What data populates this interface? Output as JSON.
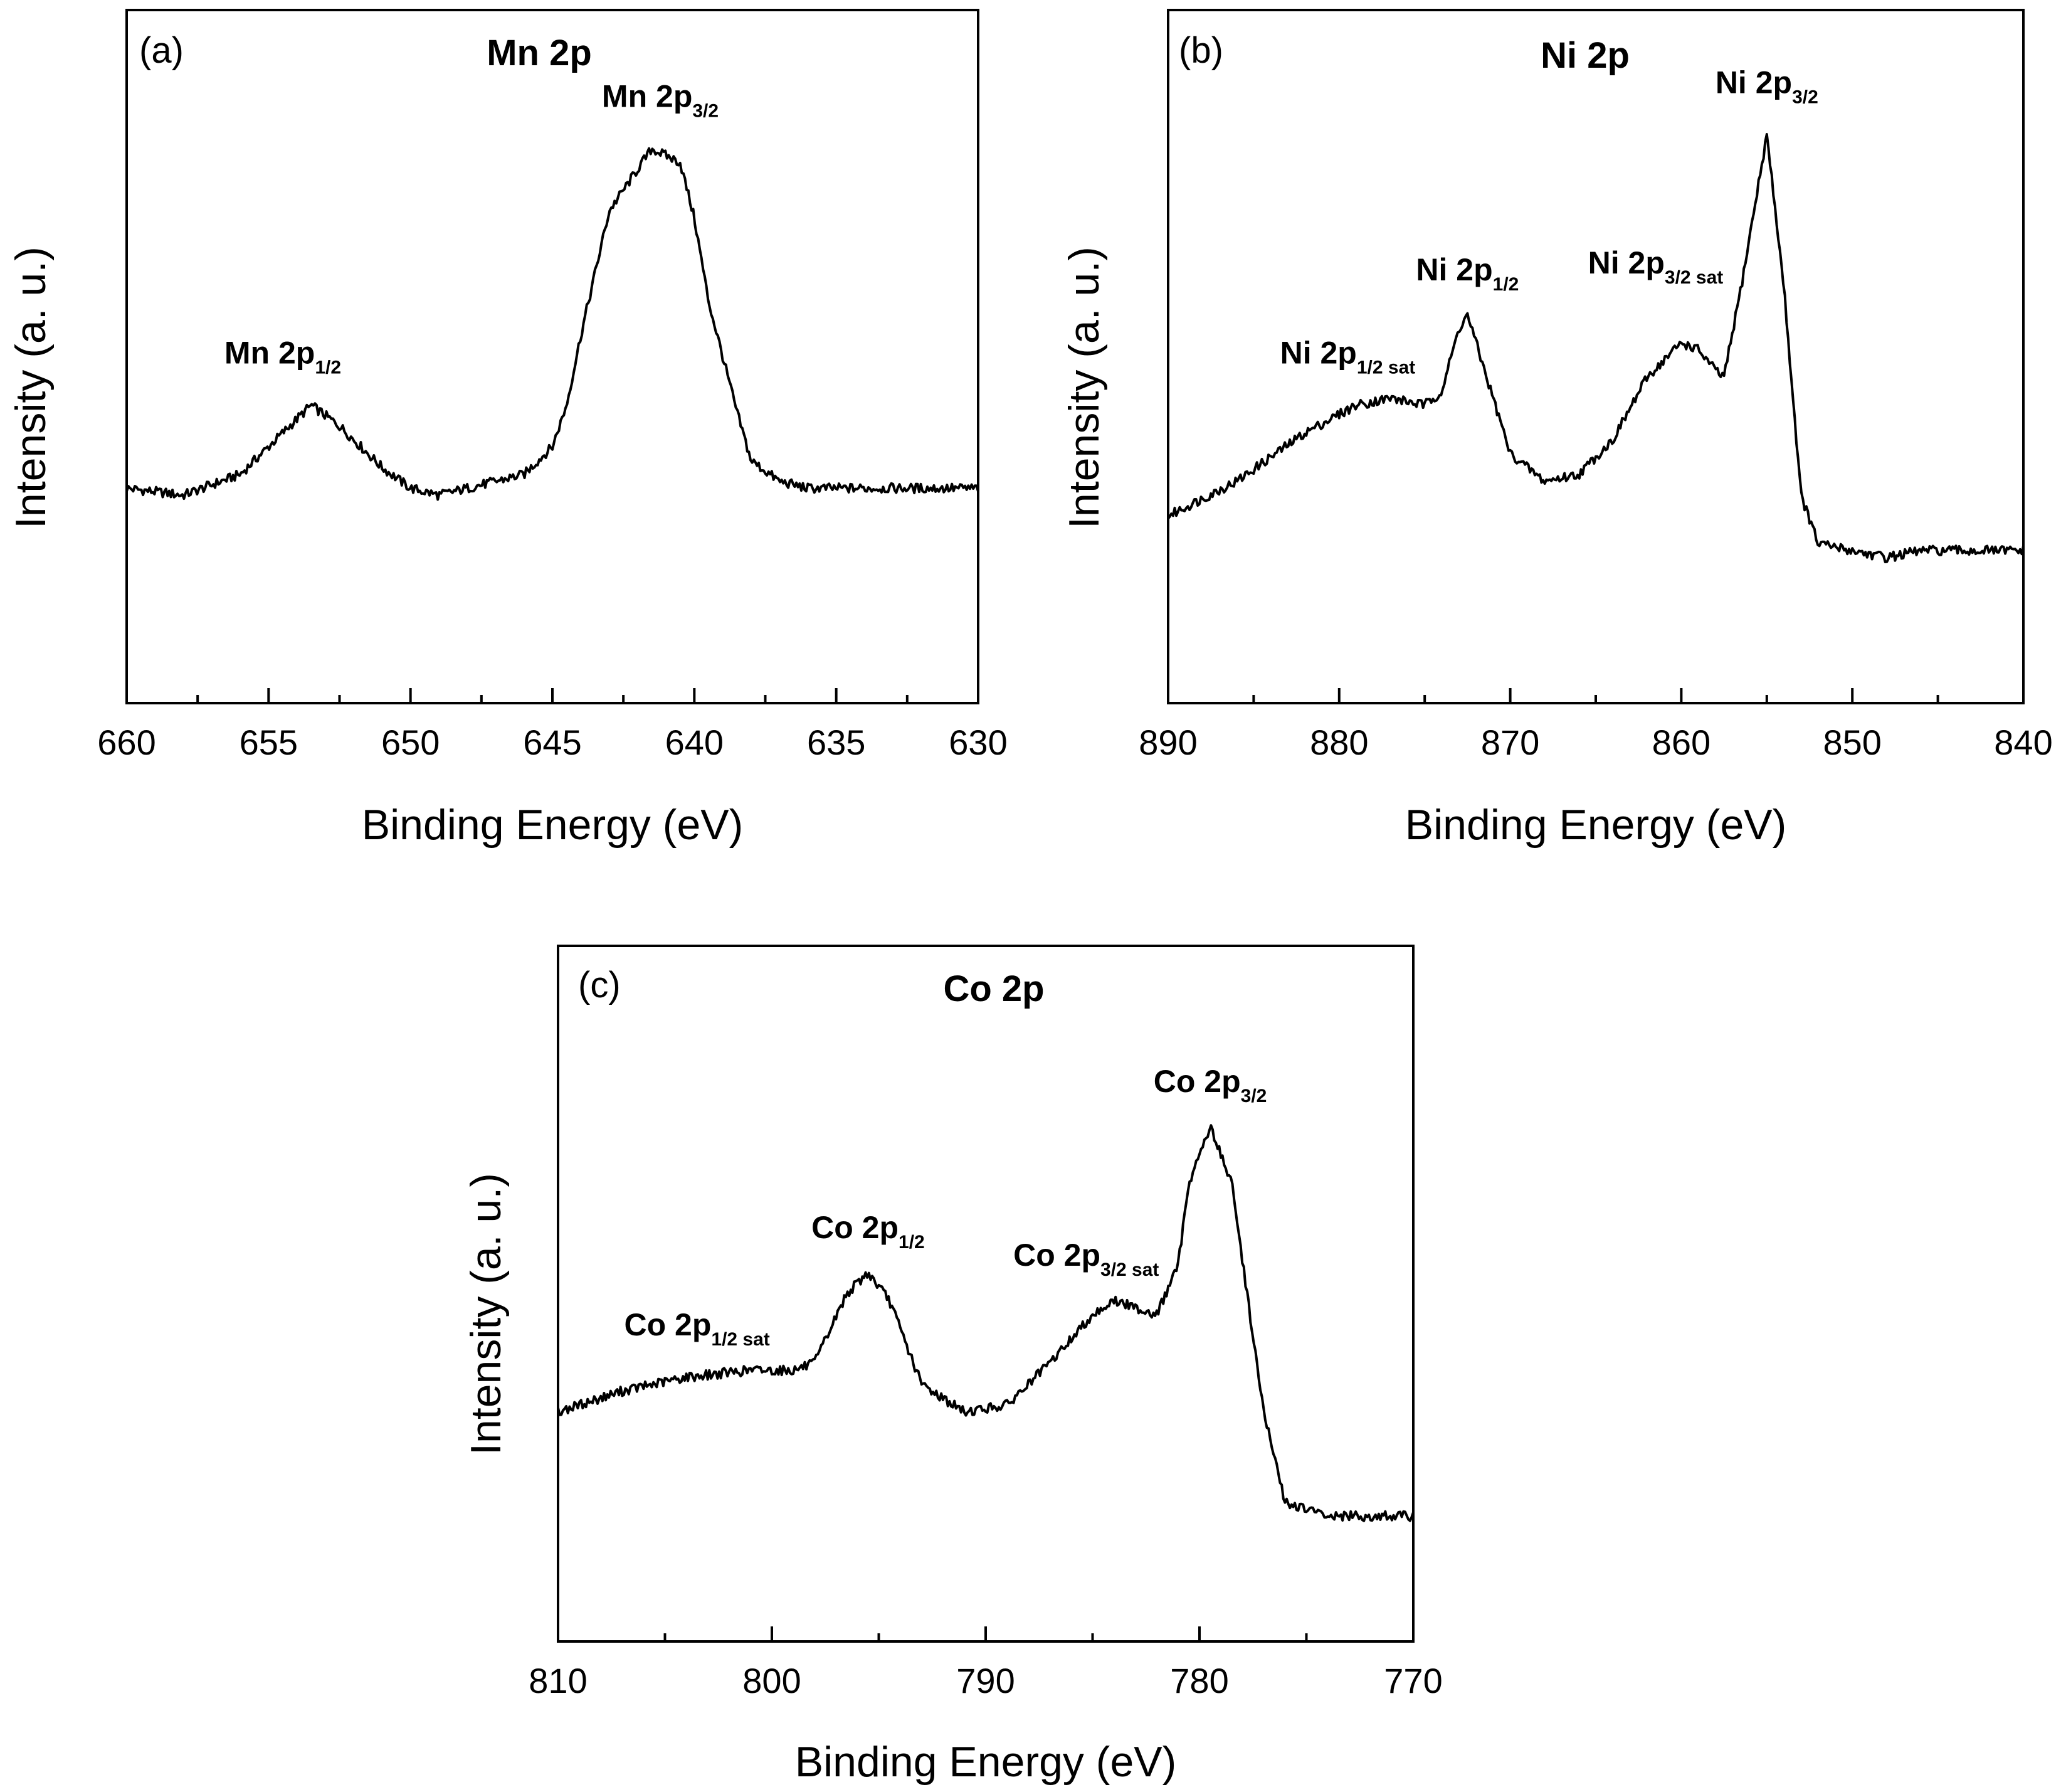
{
  "chart_data": [
    {
      "type": "line",
      "panel_label": "(a)",
      "title": "Mn 2p",
      "xlabel": "Binding Energy (eV)",
      "ylabel": "Intensity (a. u.)",
      "xlim": [
        660,
        630
      ],
      "ylim": [
        0,
        1
      ],
      "x_ticks": [
        "660",
        "655",
        "650",
        "645",
        "640",
        "635",
        "630"
      ],
      "grid": false,
      "series": [
        {
          "name": "Mn 2p spectrum",
          "x": [
            660,
            658,
            656,
            655,
            654,
            653.5,
            652.5,
            651,
            650,
            649,
            648,
            646,
            645,
            644.5,
            644,
            643,
            642,
            641.5,
            640.5,
            640,
            639.5,
            638.5,
            638,
            637,
            636,
            634,
            632,
            630
          ],
          "y": [
            0.31,
            0.3,
            0.33,
            0.37,
            0.41,
            0.43,
            0.4,
            0.34,
            0.31,
            0.3,
            0.31,
            0.33,
            0.37,
            0.43,
            0.53,
            0.71,
            0.77,
            0.8,
            0.78,
            0.7,
            0.58,
            0.42,
            0.35,
            0.32,
            0.31,
            0.31,
            0.31,
            0.31
          ]
        }
      ],
      "annotations": [
        {
          "x": 654.5,
          "y": 0.49,
          "text": "Mn 2p",
          "sub": "1/2"
        },
        {
          "x": 641.2,
          "y": 0.86,
          "text": "Mn 2p",
          "sub": "3/2"
        }
      ]
    },
    {
      "type": "line",
      "panel_label": "(b)",
      "title": "Ni 2p",
      "xlabel": "Binding Energy (eV)",
      "ylabel": "Intensity (a. u.)",
      "xlim": [
        890,
        840
      ],
      "ylim": [
        0,
        1
      ],
      "x_ticks": [
        "890",
        "880",
        "870",
        "860",
        "850",
        "840"
      ],
      "grid": false,
      "series": [
        {
          "name": "Ni 2p spectrum",
          "x": [
            890,
            886,
            882,
            879,
            877,
            875,
            874,
            873,
            872.5,
            871.5,
            870,
            868,
            866,
            864,
            862,
            860,
            859,
            858,
            857.5,
            856.5,
            855,
            854,
            853,
            852,
            850,
            848,
            846,
            844,
            842,
            840
          ],
          "y": [
            0.27,
            0.32,
            0.39,
            0.43,
            0.44,
            0.43,
            0.45,
            0.54,
            0.56,
            0.48,
            0.36,
            0.32,
            0.33,
            0.38,
            0.47,
            0.52,
            0.51,
            0.48,
            0.47,
            0.6,
            0.82,
            0.6,
            0.3,
            0.23,
            0.22,
            0.21,
            0.22,
            0.22,
            0.22,
            0.22
          ]
        }
      ],
      "annotations": [
        {
          "x": 879.5,
          "y": 0.49,
          "text": "Ni 2p",
          "sub": "1/2 sat"
        },
        {
          "x": 872.5,
          "y": 0.61,
          "text": "Ni 2p",
          "sub": "1/2"
        },
        {
          "x": 861.5,
          "y": 0.62,
          "text": "Ni 2p",
          "sub": "3/2 sat"
        },
        {
          "x": 855,
          "y": 0.88,
          "text": "Ni 2p",
          "sub": "3/2"
        }
      ]
    },
    {
      "type": "line",
      "panel_label": "(c)",
      "title": "Co 2p",
      "xlabel": "Binding Energy (eV)",
      "ylabel": "Intensity (a. u.)",
      "xlim": [
        810,
        770
      ],
      "ylim": [
        0,
        1
      ],
      "x_ticks": [
        "810",
        "800",
        "790",
        "780",
        "770"
      ],
      "grid": false,
      "series": [
        {
          "name": "Co 2p spectrum",
          "x": [
            810,
            807,
            804,
            801,
            799,
            798,
            796.5,
            795.5,
            794.5,
            793,
            791,
            789,
            787,
            785,
            784,
            783,
            782,
            781,
            780.5,
            779.5,
            778.5,
            778,
            777,
            776,
            774,
            772,
            770
          ],
          "y": [
            0.33,
            0.36,
            0.38,
            0.39,
            0.39,
            0.4,
            0.5,
            0.53,
            0.49,
            0.37,
            0.33,
            0.34,
            0.4,
            0.47,
            0.49,
            0.48,
            0.47,
            0.54,
            0.66,
            0.74,
            0.66,
            0.55,
            0.33,
            0.2,
            0.18,
            0.18,
            0.18
          ]
        }
      ],
      "annotations": [
        {
          "x": 803.5,
          "y": 0.44,
          "text": "Co 2p",
          "sub": "1/2 sat"
        },
        {
          "x": 795.5,
          "y": 0.58,
          "text": "Co 2p",
          "sub": "1/2"
        },
        {
          "x": 785.3,
          "y": 0.54,
          "text": "Co 2p",
          "sub": "3/2 sat"
        },
        {
          "x": 779.5,
          "y": 0.79,
          "text": "Co 2p",
          "sub": "3/2"
        }
      ]
    }
  ]
}
